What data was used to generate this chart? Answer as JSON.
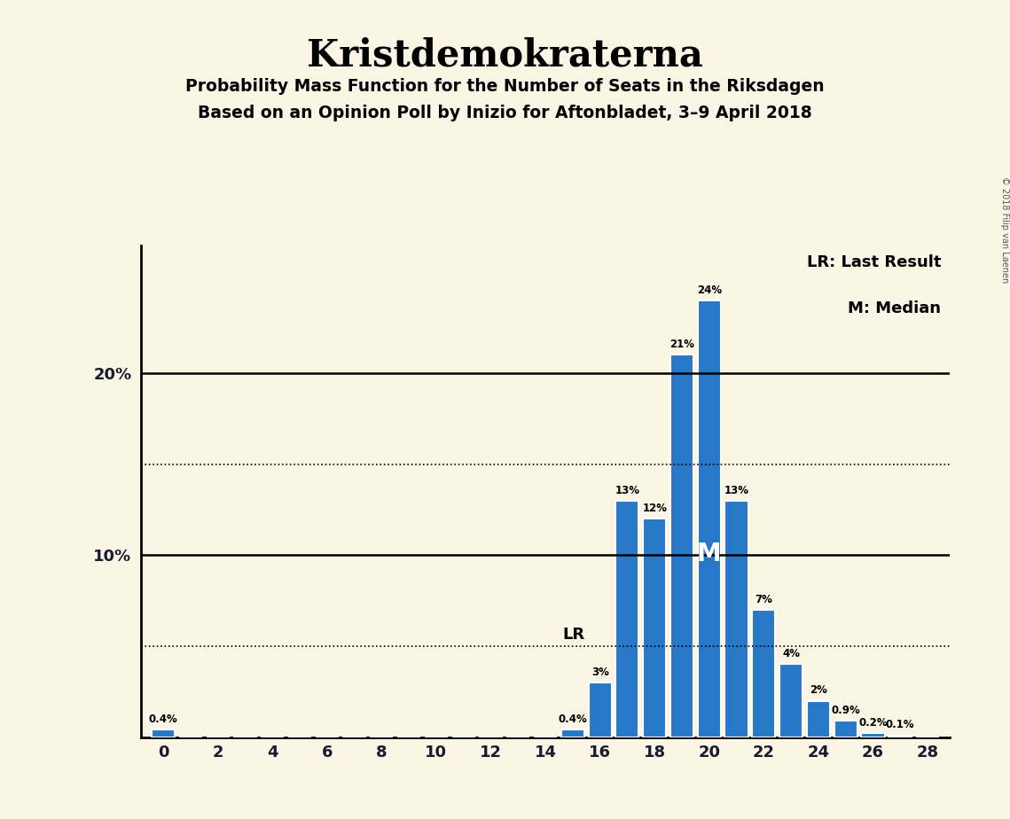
{
  "title": "Kristdemokraterna",
  "subtitle1": "Probability Mass Function for the Number of Seats in the Riksdagen",
  "subtitle2": "Based on an Opinion Poll by Inizio for Aftonbladet, 3–9 April 2018",
  "copyright": "© 2018 Filip van Laenen",
  "background_color": "#faf5e4",
  "bar_color": "#2878c8",
  "seats": [
    0,
    1,
    2,
    3,
    4,
    5,
    6,
    7,
    8,
    9,
    10,
    11,
    12,
    13,
    14,
    15,
    16,
    17,
    18,
    19,
    20,
    21,
    22,
    23,
    24,
    25,
    26,
    27,
    28
  ],
  "probs": [
    0.4,
    0.0,
    0.0,
    0.0,
    0.0,
    0.0,
    0.0,
    0.0,
    0.0,
    0.0,
    0.0,
    0.0,
    0.0,
    0.0,
    0.0,
    0.4,
    3.0,
    13.0,
    12.0,
    21.0,
    24.0,
    13.0,
    7.0,
    4.0,
    2.0,
    0.9,
    0.2,
    0.1,
    0.0
  ],
  "labels": [
    "0.4%",
    "0%",
    "0%",
    "0%",
    "0%",
    "0%",
    "0%",
    "0%",
    "0%",
    "0%",
    "0%",
    "0%",
    "0%",
    "0%",
    "0%",
    "0.4%",
    "3%",
    "13%",
    "12%",
    "21%",
    "24%",
    "13%",
    "7%",
    "4%",
    "2%",
    "0.9%",
    "0.2%",
    "0.1%",
    "0%"
  ],
  "last_result_seat": 16,
  "median_seat": 20,
  "dotted_line1_y": 15.0,
  "dotted_line2_y": 5.0,
  "ylim": [
    0,
    27
  ],
  "yticks": [
    10,
    20
  ],
  "ytick_labels": [
    "10%",
    "20%"
  ],
  "xticks": [
    0,
    2,
    4,
    6,
    8,
    10,
    12,
    14,
    16,
    18,
    20,
    22,
    24,
    26,
    28
  ],
  "legend_lr": "LR: Last Result",
  "legend_m": "M: Median",
  "solid_line_y": [
    10,
    20
  ]
}
